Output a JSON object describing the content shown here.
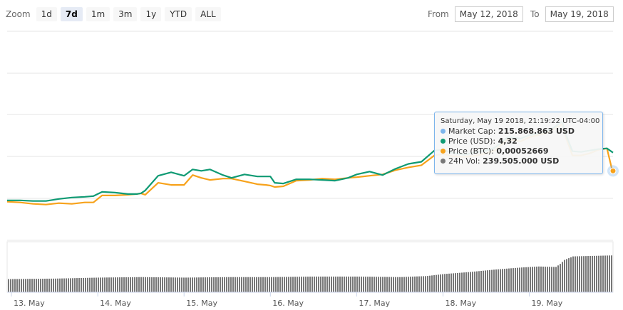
{
  "toolbar": {
    "zoom_label": "Zoom",
    "buttons": [
      "1d",
      "7d",
      "1m",
      "3m",
      "1y",
      "YTD",
      "ALL"
    ],
    "active": "7d",
    "from_label": "From",
    "from_value": "May 12, 2018",
    "to_label": "To",
    "to_value": "May 19, 2018"
  },
  "tooltip": {
    "title": "Saturday, May 19 2018, 21:19:22 UTC-04:00",
    "rows": [
      {
        "label": "Market Cap:",
        "value": "215.868.863 USD",
        "color": "#7cb5ec"
      },
      {
        "label": "Price (USD):",
        "value": "4,32",
        "color": "#0f9a73"
      },
      {
        "label": "Price (BTC):",
        "value": "0,00052669",
        "color": "#f7a21b"
      },
      {
        "label": "24h Vol:",
        "value": "239.505.000 USD",
        "color": "#777777"
      }
    ]
  },
  "chart_data": {
    "type": "line",
    "x_ticks": [
      "13. May",
      "14. May",
      "15. May",
      "16. May",
      "17. May",
      "18. May",
      "19. May"
    ],
    "x_range_days": [
      12.95,
      19.97
    ],
    "grid": true,
    "series": [
      {
        "name": "Price (USD)",
        "color": "#0f9a73",
        "x": [
          12.95,
          13.1,
          13.25,
          13.4,
          13.55,
          13.7,
          13.85,
          13.95,
          14.05,
          14.2,
          14.35,
          14.45,
          14.5,
          14.55,
          14.7,
          14.85,
          15.0,
          15.1,
          15.2,
          15.3,
          15.45,
          15.55,
          15.7,
          15.85,
          15.95,
          16.0,
          16.05,
          16.15,
          16.3,
          16.45,
          16.6,
          16.75,
          16.9,
          17.0,
          17.15,
          17.3,
          17.45,
          17.6,
          17.75,
          17.9,
          18.0,
          18.1,
          18.25,
          18.4,
          18.5,
          18.6,
          18.75,
          18.9,
          19.0,
          19.1,
          19.2,
          19.3,
          19.35,
          19.38,
          19.42,
          19.5,
          19.6,
          19.7,
          19.8,
          19.9,
          19.97
        ],
        "y": [
          243,
          243,
          244,
          244,
          241,
          239,
          238,
          237,
          231,
          232,
          234,
          234,
          233,
          229,
          208,
          203,
          208,
          199,
          201,
          199,
          207,
          211,
          206,
          209,
          209,
          209,
          218,
          219,
          213,
          213,
          214,
          215,
          211,
          206,
          202,
          207,
          198,
          191,
          188,
          172,
          171,
          175,
          178,
          174,
          172,
          168,
          153,
          155,
          150,
          148,
          145,
          138,
          133,
          131,
          148,
          173,
          174,
          172,
          170,
          169,
          175
        ]
      },
      {
        "name": "Price (BTC)",
        "color": "#f7a21b",
        "x": [
          12.95,
          13.1,
          13.25,
          13.4,
          13.55,
          13.7,
          13.85,
          13.95,
          14.05,
          14.2,
          14.35,
          14.45,
          14.5,
          14.55,
          14.7,
          14.85,
          15.0,
          15.1,
          15.2,
          15.3,
          15.45,
          15.55,
          15.7,
          15.85,
          15.95,
          16.0,
          16.05,
          16.15,
          16.3,
          16.45,
          16.6,
          16.75,
          16.9,
          17.0,
          17.15,
          17.3,
          17.45,
          17.6,
          17.75,
          17.9,
          18.0,
          18.1,
          18.25,
          18.4,
          18.5,
          18.6,
          18.75,
          18.9,
          19.0,
          19.1,
          19.2,
          19.3,
          19.35,
          19.38,
          19.42,
          19.5,
          19.6,
          19.7,
          19.8,
          19.9,
          19.97
        ],
        "y": [
          245,
          246,
          248,
          249,
          247,
          248,
          246,
          246,
          236,
          236,
          235,
          234,
          233,
          235,
          218,
          221,
          221,
          207,
          211,
          214,
          212,
          212,
          216,
          220,
          221,
          222,
          224,
          223,
          215,
          214,
          212,
          213,
          211,
          210,
          208,
          206,
          200,
          196,
          193,
          179,
          177,
          180,
          181,
          179,
          176,
          172,
          156,
          159,
          153,
          150,
          147,
          140,
          137,
          134,
          152,
          179,
          179,
          176,
          171,
          169,
          205
        ]
      },
      {
        "name": "Market Cap",
        "color": "#7cb5ec",
        "x": [
          19.97
        ],
        "y": [
          201
        ]
      }
    ],
    "volume": {
      "name": "24h Vol",
      "color": "#777777",
      "x": [
        12.95,
        13.5,
        14.0,
        14.5,
        15.0,
        15.5,
        16.0,
        16.5,
        17.0,
        17.5,
        17.8,
        18.0,
        18.3,
        18.6,
        18.9,
        19.1,
        19.3,
        19.35,
        19.4,
        19.5,
        19.97
      ],
      "y": [
        226,
        227,
        229,
        230,
        229,
        230,
        230,
        231,
        231,
        230,
        232,
        236,
        240,
        245,
        249,
        251,
        250,
        256,
        264,
        271,
        273
      ]
    }
  }
}
